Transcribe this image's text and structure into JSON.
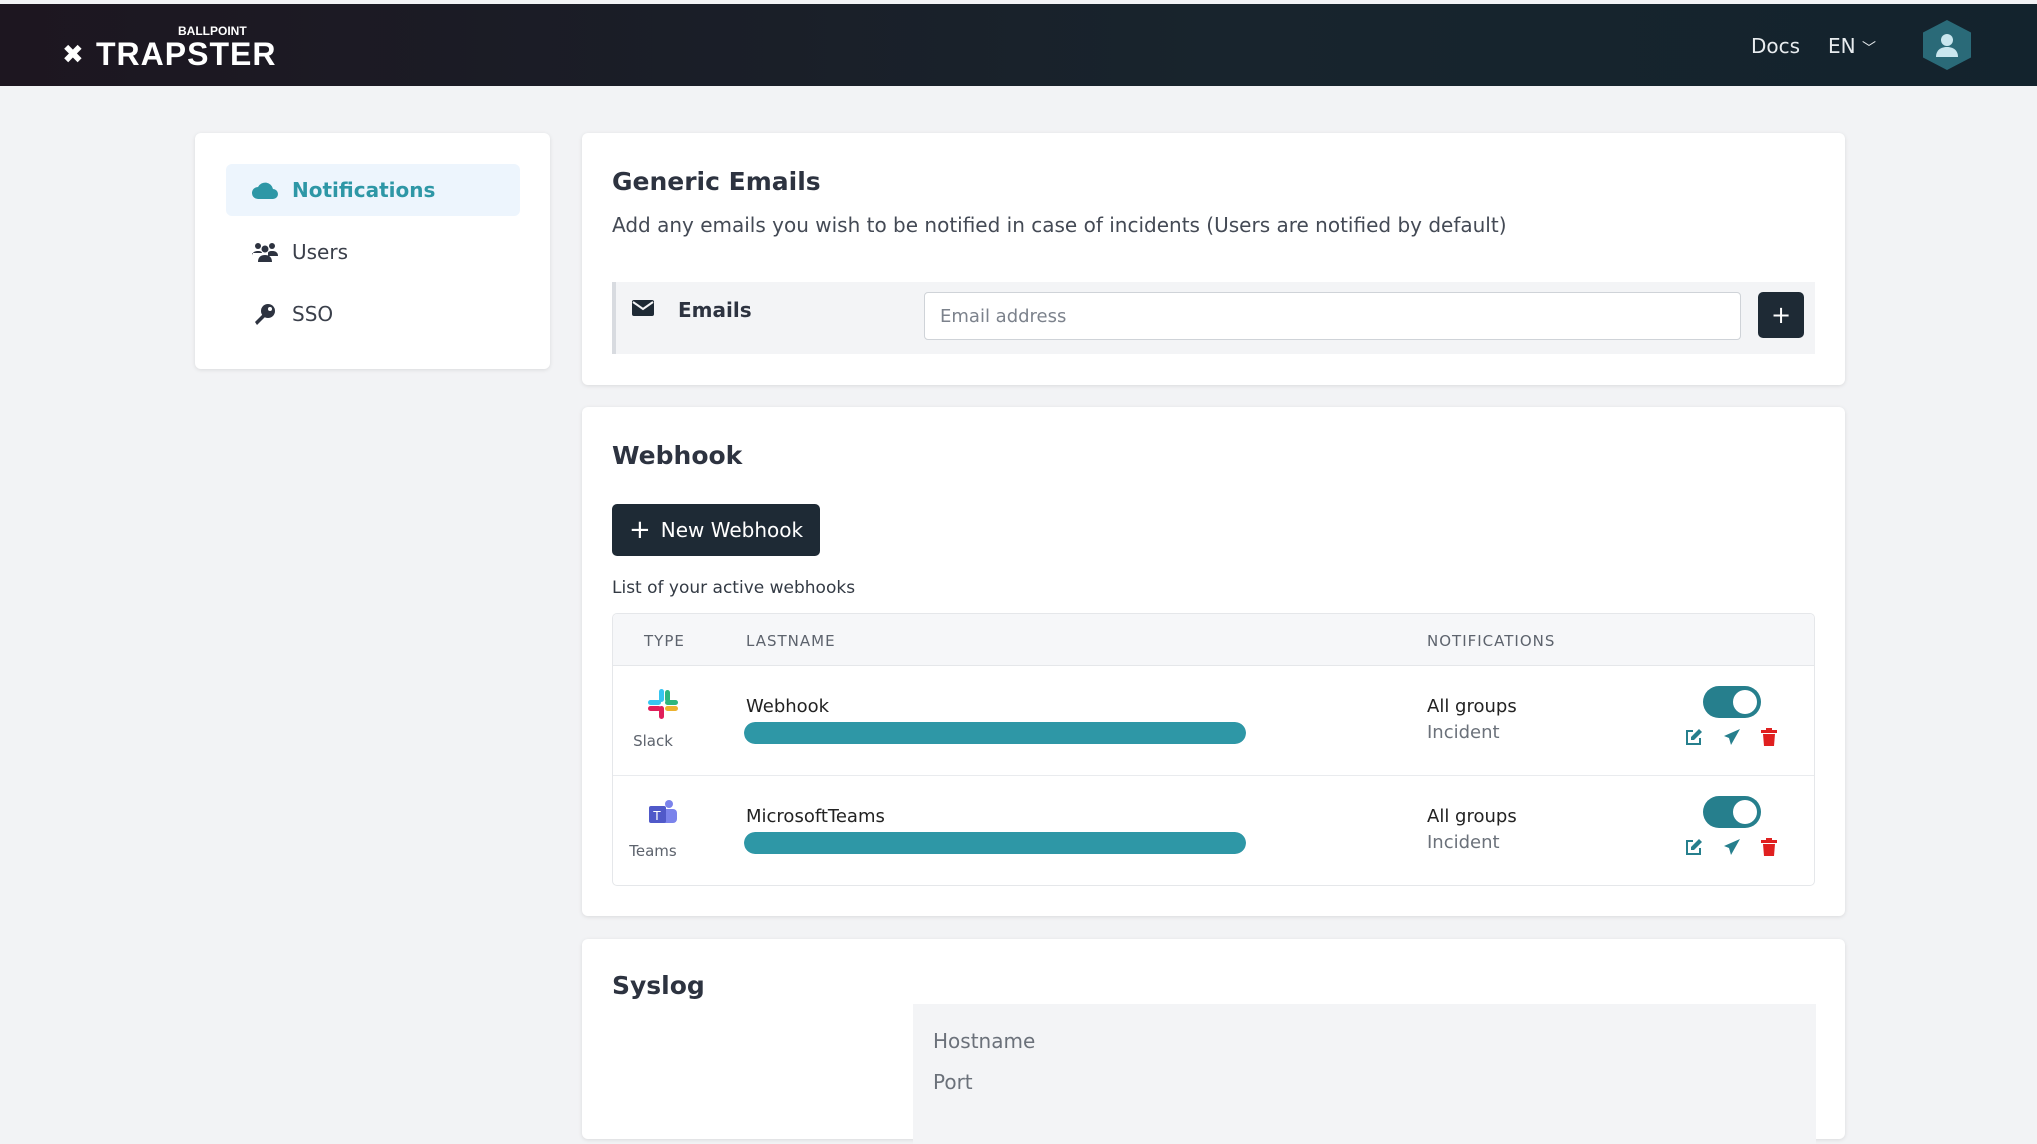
{
  "header": {
    "brand_small": "BALLPOINT",
    "brand": "TRAPSTER",
    "docs": "Docs",
    "language": "EN"
  },
  "sidebar": {
    "items": [
      {
        "label": "Notifications",
        "icon": "cloud-icon",
        "active": true
      },
      {
        "label": "Users",
        "icon": "users-icon"
      },
      {
        "label": "SSO",
        "icon": "key-icon"
      }
    ]
  },
  "emails": {
    "title": "Generic Emails",
    "description": "Add any emails you wish to be notified in case of incidents (Users are notified by default)",
    "label": "Emails",
    "placeholder": "Email address",
    "add": "+"
  },
  "webhook": {
    "title": "Webhook",
    "new_button": "New Webhook",
    "list_label": "List of your active webhooks",
    "columns": [
      "TYPE",
      "LASTNAME",
      "NOTIFICATIONS"
    ],
    "rows": [
      {
        "type": "Slack",
        "name": "Webhook",
        "progress": 100,
        "groups": "All groups",
        "event": "Incident",
        "enabled": true
      },
      {
        "type": "Teams",
        "name": "MicrosoftTeams",
        "progress": 100,
        "groups": "All groups",
        "event": "Incident",
        "enabled": true
      }
    ]
  },
  "syslog": {
    "title": "Syslog",
    "hostname": "Hostname",
    "port": "Port"
  },
  "colors": {
    "accent": "#2e97a6",
    "dark": "#1e2a35",
    "delete": "#e02020"
  }
}
